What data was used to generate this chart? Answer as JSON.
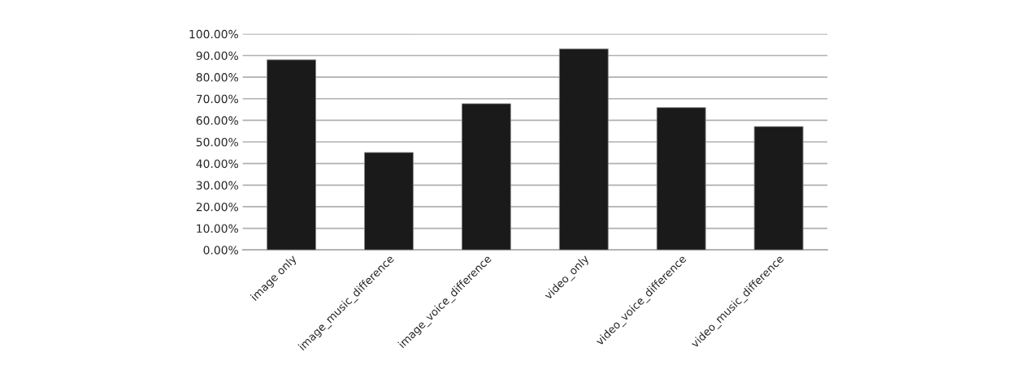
{
  "chart_data": {
    "type": "bar",
    "categories": [
      "image only",
      "image_music_difference",
      "image_voice_difference",
      "video_only",
      "video_voice_difference",
      "video_music_difference"
    ],
    "values": [
      88.0,
      45.1,
      67.7,
      93.1,
      65.9,
      57.1
    ],
    "color": "#1a1a1a",
    "ylim": [
      0,
      100
    ],
    "yticks": [
      {
        "value": 0,
        "label": "0.00%"
      },
      {
        "value": 10,
        "label": "10.00%"
      },
      {
        "value": 20,
        "label": "20.00%"
      },
      {
        "value": 30,
        "label": "30.00%"
      },
      {
        "value": 40,
        "label": "40.00%"
      },
      {
        "value": 50,
        "label": "50.00%"
      },
      {
        "value": 60,
        "label": "60.00%"
      },
      {
        "value": 70,
        "label": "70.00%"
      },
      {
        "value": 80,
        "label": "80.00%"
      },
      {
        "value": 90,
        "label": "90.00%"
      },
      {
        "value": 100,
        "label": "100.00%"
      }
    ],
    "grid": "y"
  }
}
